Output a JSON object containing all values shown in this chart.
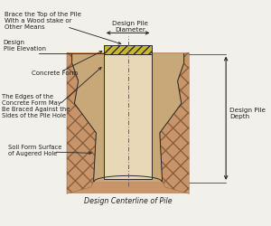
{
  "bg_color": "#f2f0eb",
  "soil_color": "#c8956a",
  "soil_dark": "#8b6040",
  "hole_fill": "#c8a878",
  "pile_color": "#e8d8b8",
  "form_color": "#c8b830",
  "outline_color": "#2a2a2a",
  "text_color": "#222222",
  "centerline_color": "#666666",
  "title": "Design Centerline of Pile",
  "labels": {
    "brace": "Brace the Top of the Pile\nWith a Wood stake or\nOther Means",
    "diameter": "Design Pile\nDiameter",
    "elevation": "Design\nPile Elevation",
    "form": "Concrete Form",
    "edges": "The Edges of the\nConcrete Form May\nBe Braced Against the\nSides of the Pile Hole",
    "soil_form": "Soil Form Surface\nof Augered Hole",
    "depth": "Design Pile\nDepth"
  },
  "figsize": [
    3.0,
    2.51
  ],
  "dpi": 100
}
